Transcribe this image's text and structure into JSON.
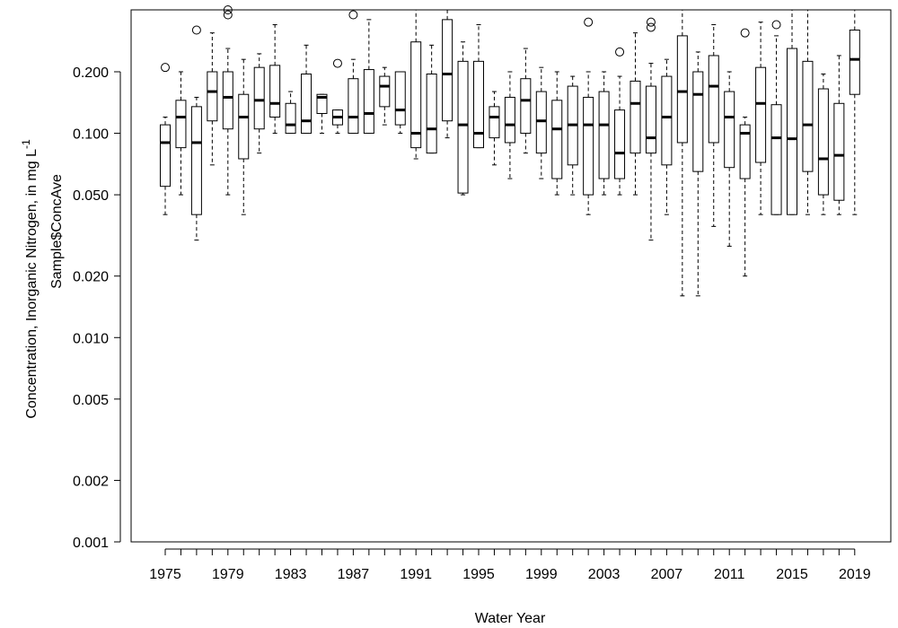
{
  "chart_data": {
    "type": "boxplot",
    "title": "",
    "xlabel": "Water Year",
    "ylabel_main": "Concentration, Inorganic Nitrogen, in mg  L",
    "ylabel_superscript": "-1",
    "ylabel_overlay": "Sample$ConcAve",
    "yscale": "log",
    "ylim": [
      0.001,
      0.45
    ],
    "y_ticks": [
      0.001,
      0.002,
      0.005,
      0.01,
      0.02,
      0.05,
      0.1,
      0.2
    ],
    "y_tick_labels": [
      "0.001",
      "0.002",
      "0.005",
      "0.010",
      "0.020",
      "0.050",
      "0.100",
      "0.200"
    ],
    "x_tick_labels": [
      "1975",
      "1979",
      "1983",
      "1987",
      "1991",
      "1995",
      "1999",
      "2003",
      "2007",
      "2011",
      "2015",
      "2019"
    ],
    "years": [
      1975,
      1976,
      1977,
      1978,
      1979,
      1980,
      1981,
      1982,
      1983,
      1984,
      1985,
      1986,
      1987,
      1988,
      1989,
      1990,
      1991,
      1992,
      1993,
      1994,
      1995,
      1996,
      1997,
      1998,
      1999,
      2000,
      2001,
      2002,
      2003,
      2004,
      2005,
      2006,
      2007,
      2008,
      2009,
      2010,
      2011,
      2012,
      2013,
      2014,
      2015,
      2016,
      2017,
      2018,
      2019
    ],
    "boxes": [
      {
        "year": 1975,
        "low": 0.04,
        "q1": 0.055,
        "median": 0.09,
        "q3": 0.11,
        "high": 0.12,
        "outliers": [
          0.21
        ]
      },
      {
        "year": 1976,
        "low": 0.05,
        "q1": 0.085,
        "median": 0.12,
        "q3": 0.145,
        "high": 0.2,
        "outliers": []
      },
      {
        "year": 1977,
        "low": 0.03,
        "q1": 0.04,
        "median": 0.09,
        "q3": 0.135,
        "high": 0.15,
        "outliers": [
          0.32
        ]
      },
      {
        "year": 1978,
        "low": 0.07,
        "q1": 0.115,
        "median": 0.16,
        "q3": 0.2,
        "high": 0.31,
        "outliers": []
      },
      {
        "year": 1979,
        "low": 0.05,
        "q1": 0.105,
        "median": 0.15,
        "q3": 0.2,
        "high": 0.26,
        "outliers": [
          0.38,
          0.41
        ]
      },
      {
        "year": 1980,
        "low": 0.04,
        "q1": 0.075,
        "median": 0.12,
        "q3": 0.155,
        "high": 0.23,
        "outliers": []
      },
      {
        "year": 1981,
        "low": 0.08,
        "q1": 0.105,
        "median": 0.145,
        "q3": 0.21,
        "high": 0.245,
        "outliers": []
      },
      {
        "year": 1982,
        "low": 0.1,
        "q1": 0.12,
        "median": 0.14,
        "q3": 0.215,
        "high": 0.34,
        "outliers": []
      },
      {
        "year": 1983,
        "low": 0.1,
        "q1": 0.1,
        "median": 0.11,
        "q3": 0.14,
        "high": 0.16,
        "outliers": []
      },
      {
        "year": 1984,
        "low": 0.1,
        "q1": 0.1,
        "median": 0.115,
        "q3": 0.195,
        "high": 0.27,
        "outliers": []
      },
      {
        "year": 1985,
        "low": 0.1,
        "q1": 0.125,
        "median": 0.15,
        "q3": 0.155,
        "high": 0.155,
        "outliers": []
      },
      {
        "year": 1986,
        "low": 0.1,
        "q1": 0.11,
        "median": 0.12,
        "q3": 0.13,
        "high": 0.13,
        "outliers": [
          0.22
        ]
      },
      {
        "year": 1987,
        "low": 0.1,
        "q1": 0.1,
        "median": 0.12,
        "q3": 0.185,
        "high": 0.23,
        "outliers": [
          0.38
        ]
      },
      {
        "year": 1988,
        "low": 0.1,
        "q1": 0.1,
        "median": 0.125,
        "q3": 0.205,
        "high": 0.36,
        "outliers": []
      },
      {
        "year": 1989,
        "low": 0.11,
        "q1": 0.135,
        "median": 0.17,
        "q3": 0.19,
        "high": 0.21,
        "outliers": []
      },
      {
        "year": 1990,
        "low": 0.1,
        "q1": 0.11,
        "median": 0.13,
        "q3": 0.2,
        "high": 0.2,
        "outliers": []
      },
      {
        "year": 1991,
        "low": 0.075,
        "q1": 0.085,
        "median": 0.1,
        "q3": 0.28,
        "high": 0.45,
        "outliers": []
      },
      {
        "year": 1992,
        "low": 0.08,
        "q1": 0.08,
        "median": 0.105,
        "q3": 0.195,
        "high": 0.27,
        "outliers": []
      },
      {
        "year": 1993,
        "low": 0.095,
        "q1": 0.115,
        "median": 0.195,
        "q3": 0.36,
        "high": 0.45,
        "outliers": []
      },
      {
        "year": 1994,
        "low": 0.05,
        "q1": 0.051,
        "median": 0.11,
        "q3": 0.225,
        "high": 0.28,
        "outliers": []
      },
      {
        "year": 1995,
        "low": 0.085,
        "q1": 0.085,
        "median": 0.1,
        "q3": 0.225,
        "high": 0.34,
        "outliers": []
      },
      {
        "year": 1996,
        "low": 0.07,
        "q1": 0.095,
        "median": 0.12,
        "q3": 0.135,
        "high": 0.16,
        "outliers": []
      },
      {
        "year": 1997,
        "low": 0.06,
        "q1": 0.09,
        "median": 0.11,
        "q3": 0.15,
        "high": 0.2,
        "outliers": []
      },
      {
        "year": 1998,
        "low": 0.08,
        "q1": 0.1,
        "median": 0.145,
        "q3": 0.185,
        "high": 0.26,
        "outliers": []
      },
      {
        "year": 1999,
        "low": 0.06,
        "q1": 0.08,
        "median": 0.115,
        "q3": 0.16,
        "high": 0.21,
        "outliers": []
      },
      {
        "year": 2000,
        "low": 0.05,
        "q1": 0.06,
        "median": 0.105,
        "q3": 0.145,
        "high": 0.2,
        "outliers": []
      },
      {
        "year": 2001,
        "low": 0.05,
        "q1": 0.07,
        "median": 0.11,
        "q3": 0.17,
        "high": 0.19,
        "outliers": []
      },
      {
        "year": 2002,
        "low": 0.04,
        "q1": 0.05,
        "median": 0.11,
        "q3": 0.15,
        "high": 0.2,
        "outliers": [
          0.35
        ]
      },
      {
        "year": 2003,
        "low": 0.05,
        "q1": 0.06,
        "median": 0.11,
        "q3": 0.16,
        "high": 0.2,
        "outliers": []
      },
      {
        "year": 2004,
        "low": 0.05,
        "q1": 0.06,
        "median": 0.08,
        "q3": 0.13,
        "high": 0.19,
        "outliers": [
          0.25
        ]
      },
      {
        "year": 2005,
        "low": 0.05,
        "q1": 0.08,
        "median": 0.14,
        "q3": 0.18,
        "high": 0.31,
        "outliers": []
      },
      {
        "year": 2006,
        "low": 0.03,
        "q1": 0.08,
        "median": 0.095,
        "q3": 0.17,
        "high": 0.22,
        "outliers": [
          0.33,
          0.35
        ]
      },
      {
        "year": 2007,
        "low": 0.04,
        "q1": 0.07,
        "median": 0.12,
        "q3": 0.19,
        "high": 0.23,
        "outliers": []
      },
      {
        "year": 2008,
        "low": 0.016,
        "q1": 0.09,
        "median": 0.16,
        "q3": 0.3,
        "high": 0.45,
        "outliers": []
      },
      {
        "year": 2009,
        "low": 0.016,
        "q1": 0.065,
        "median": 0.155,
        "q3": 0.2,
        "high": 0.25,
        "outliers": []
      },
      {
        "year": 2010,
        "low": 0.035,
        "q1": 0.09,
        "median": 0.17,
        "q3": 0.24,
        "high": 0.34,
        "outliers": []
      },
      {
        "year": 2011,
        "low": 0.028,
        "q1": 0.068,
        "median": 0.12,
        "q3": 0.16,
        "high": 0.2,
        "outliers": []
      },
      {
        "year": 2012,
        "low": 0.02,
        "q1": 0.06,
        "median": 0.1,
        "q3": 0.11,
        "high": 0.12,
        "outliers": [
          0.31
        ]
      },
      {
        "year": 2013,
        "low": 0.04,
        "q1": 0.072,
        "median": 0.14,
        "q3": 0.21,
        "high": 0.35,
        "outliers": []
      },
      {
        "year": 2014,
        "low": 0.04,
        "q1": 0.04,
        "median": 0.095,
        "q3": 0.138,
        "high": 0.3,
        "outliers": [
          0.34
        ]
      },
      {
        "year": 2015,
        "low": 0.04,
        "q1": 0.04,
        "median": 0.094,
        "q3": 0.26,
        "high": 0.45,
        "outliers": []
      },
      {
        "year": 2016,
        "low": 0.04,
        "q1": 0.065,
        "median": 0.11,
        "q3": 0.225,
        "high": 0.45,
        "outliers": []
      },
      {
        "year": 2017,
        "low": 0.04,
        "q1": 0.05,
        "median": 0.075,
        "q3": 0.165,
        "high": 0.195,
        "outliers": []
      },
      {
        "year": 2018,
        "low": 0.04,
        "q1": 0.047,
        "median": 0.078,
        "q3": 0.14,
        "high": 0.24,
        "outliers": []
      },
      {
        "year": 2019,
        "low": 0.04,
        "q1": 0.155,
        "median": 0.23,
        "q3": 0.32,
        "high": 0.45,
        "outliers": []
      }
    ],
    "grid": false,
    "legend": "none"
  }
}
